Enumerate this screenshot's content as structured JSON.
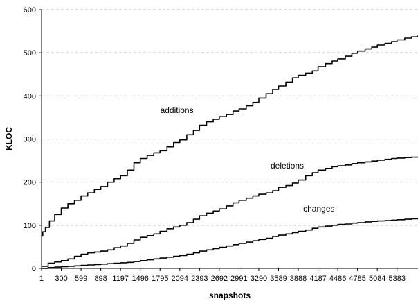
{
  "chart_data": {
    "type": "line",
    "title": "",
    "xlabel": "snapshots",
    "ylabel": "KLOC",
    "ylim": [
      0,
      600
    ],
    "xlim": [
      1,
      5700
    ],
    "grid": true,
    "legend": "none",
    "y_ticks": [
      0,
      100,
      200,
      300,
      400,
      500,
      600
    ],
    "x_ticks": [
      1,
      300,
      599,
      898,
      1197,
      1496,
      1795,
      2094,
      2393,
      2692,
      2991,
      3290,
      3589,
      3888,
      4187,
      4486,
      4785,
      5084,
      5383
    ],
    "series": [
      {
        "name": "additions",
        "x": [
          1,
          20,
          60,
          120,
          200,
          300,
          400,
          500,
          599,
          700,
          800,
          898,
          1000,
          1100,
          1197,
          1300,
          1400,
          1496,
          1600,
          1700,
          1795,
          1900,
          2000,
          2094,
          2200,
          2300,
          2393,
          2500,
          2600,
          2692,
          2800,
          2900,
          2991,
          3100,
          3200,
          3290,
          3400,
          3500,
          3589,
          3700,
          3800,
          3888,
          4000,
          4100,
          4187,
          4300,
          4400,
          4486,
          4600,
          4700,
          4785,
          4900,
          5000,
          5084,
          5200,
          5300,
          5383,
          5500,
          5600,
          5700
        ],
        "values": [
          75,
          85,
          95,
          110,
          125,
          140,
          150,
          158,
          168,
          175,
          183,
          190,
          200,
          208,
          215,
          228,
          245,
          255,
          262,
          268,
          273,
          282,
          292,
          298,
          310,
          320,
          332,
          340,
          346,
          352,
          357,
          365,
          370,
          377,
          385,
          395,
          405,
          415,
          423,
          432,
          442,
          448,
          453,
          458,
          468,
          475,
          481,
          486,
          492,
          499,
          504,
          509,
          513,
          518,
          522,
          526,
          530,
          534,
          537,
          540
        ]
      },
      {
        "name": "deletions",
        "x": [
          1,
          100,
          200,
          300,
          400,
          500,
          599,
          700,
          800,
          898,
          1000,
          1100,
          1197,
          1300,
          1400,
          1496,
          1600,
          1700,
          1795,
          1900,
          2000,
          2094,
          2200,
          2300,
          2393,
          2500,
          2600,
          2692,
          2800,
          2900,
          2991,
          3100,
          3200,
          3290,
          3400,
          3500,
          3589,
          3700,
          3800,
          3888,
          4000,
          4100,
          4187,
          4300,
          4400,
          4486,
          4600,
          4700,
          4785,
          4900,
          5000,
          5084,
          5200,
          5300,
          5383,
          5500,
          5600,
          5700
        ],
        "values": [
          5,
          12,
          15,
          18,
          22,
          28,
          33,
          36,
          38,
          40,
          43,
          48,
          52,
          58,
          66,
          72,
          76,
          80,
          86,
          92,
          96,
          100,
          106,
          114,
          122,
          128,
          133,
          138,
          145,
          152,
          158,
          163,
          168,
          172,
          175,
          180,
          188,
          192,
          198,
          205,
          215,
          222,
          228,
          232,
          236,
          238,
          240,
          243,
          245,
          247,
          249,
          251,
          253,
          255,
          256,
          257,
          258,
          259
        ]
      },
      {
        "name": "changes",
        "x": [
          1,
          100,
          200,
          300,
          400,
          500,
          599,
          700,
          800,
          898,
          1000,
          1100,
          1197,
          1300,
          1400,
          1496,
          1600,
          1700,
          1795,
          1900,
          2000,
          2094,
          2200,
          2300,
          2393,
          2500,
          2600,
          2692,
          2800,
          2900,
          2991,
          3100,
          3200,
          3290,
          3400,
          3500,
          3589,
          3700,
          3800,
          3888,
          4000,
          4100,
          4187,
          4300,
          4400,
          4486,
          4600,
          4700,
          4785,
          4900,
          5000,
          5084,
          5200,
          5300,
          5383,
          5500,
          5600,
          5700
        ],
        "values": [
          0,
          2,
          3,
          4,
          5,
          6,
          7,
          8,
          9,
          10,
          11,
          12,
          13,
          14,
          16,
          18,
          20,
          22,
          24,
          26,
          28,
          30,
          33,
          36,
          40,
          43,
          46,
          49,
          52,
          55,
          58,
          61,
          64,
          67,
          70,
          74,
          77,
          80,
          83,
          86,
          89,
          93,
          96,
          98,
          100,
          102,
          103,
          105,
          106,
          108,
          109,
          110,
          111,
          112,
          113,
          114,
          115,
          115
        ]
      }
    ]
  }
}
